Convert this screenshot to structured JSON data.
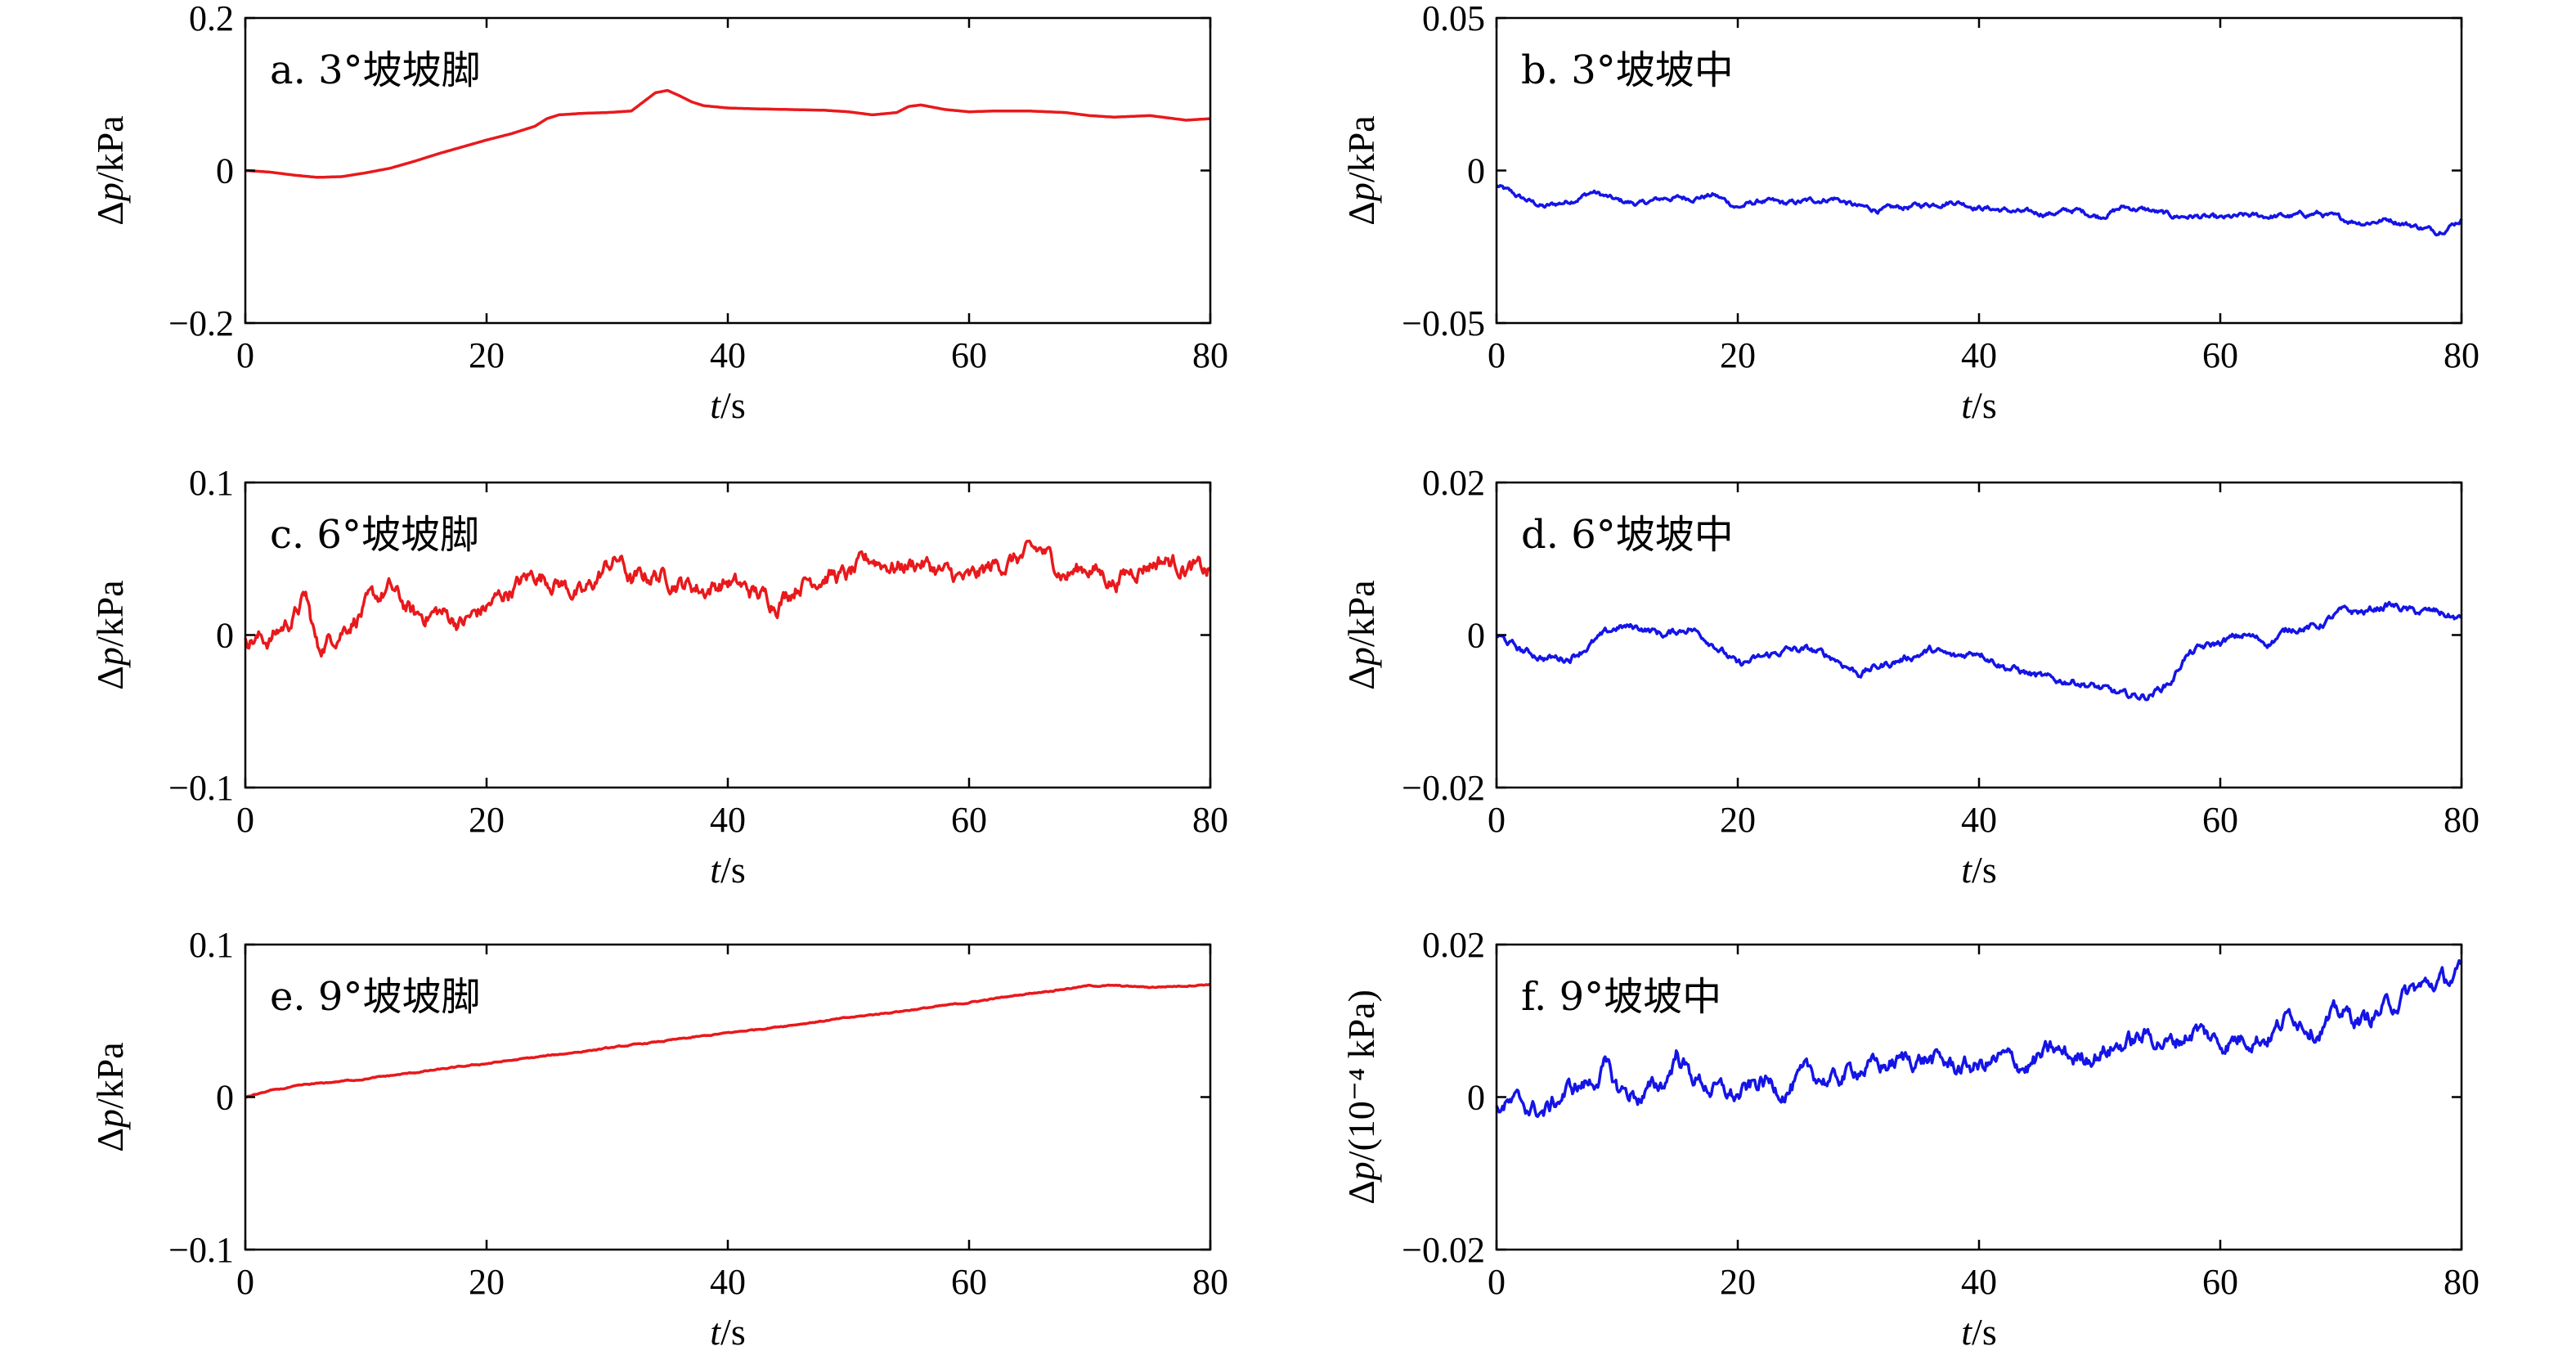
{
  "chart_data": [
    {
      "type": "line",
      "panel": "a. 3°坡坡脚",
      "xlabel_var": "t",
      "xlabel_unit": "/s",
      "ylabel_var": "p",
      "ylabel_unit": "/kPa",
      "xlim": [
        0,
        80
      ],
      "ylim": [
        -0.2,
        0.2
      ],
      "xticks": [
        "0",
        "20",
        "40",
        "60",
        "80"
      ],
      "yticks": [
        "−0.2",
        "0",
        "0.2"
      ],
      "ytick_values": [
        -0.2,
        0,
        0.2
      ],
      "color": "#e8191c",
      "noise": 0,
      "x": [
        0,
        2,
        4,
        6,
        8,
        10,
        12,
        14,
        16,
        18,
        20,
        22,
        24,
        25,
        26,
        28,
        30,
        32,
        33,
        34,
        35,
        36,
        37,
        38,
        40,
        42,
        45,
        48,
        50,
        52,
        54,
        55,
        56,
        58,
        60,
        62,
        65,
        68,
        70,
        72,
        75,
        76,
        78,
        80
      ],
      "y": [
        0,
        -0.002,
        -0.006,
        -0.009,
        -0.008,
        -0.003,
        0.003,
        0.012,
        0.022,
        0.031,
        0.04,
        0.048,
        0.058,
        0.068,
        0.073,
        0.075,
        0.076,
        0.078,
        0.09,
        0.102,
        0.105,
        0.098,
        0.09,
        0.085,
        0.082,
        0.081,
        0.08,
        0.079,
        0.077,
        0.073,
        0.076,
        0.084,
        0.086,
        0.08,
        0.077,
        0.078,
        0.078,
        0.076,
        0.072,
        0.07,
        0.072,
        0.07,
        0.066,
        0.068
      ]
    },
    {
      "type": "line",
      "panel": "b. 3°坡坡中",
      "xlabel_var": "t",
      "xlabel_unit": "/s",
      "ylabel_var": "p",
      "ylabel_unit": "/kPa",
      "xlim": [
        0,
        80
      ],
      "ylim": [
        -0.05,
        0.05
      ],
      "xticks": [
        "0",
        "20",
        "40",
        "60",
        "80"
      ],
      "yticks": [
        "−0.05",
        "0",
        "0.05"
      ],
      "ytick_values": [
        -0.05,
        0,
        0.05
      ],
      "color": "#1414e6",
      "noise": 0.0009,
      "x": [
        0,
        2,
        4,
        6,
        8,
        10,
        12,
        14,
        16,
        18,
        20,
        22,
        24,
        26,
        28,
        30,
        32,
        34,
        36,
        38,
        40,
        42,
        44,
        46,
        48,
        50,
        52,
        54,
        56,
        58,
        60,
        62,
        64,
        66,
        68,
        70,
        72,
        74,
        76,
        78,
        80
      ],
      "y": [
        -0.005,
        -0.009,
        -0.012,
        -0.01,
        -0.007,
        -0.01,
        -0.011,
        -0.009,
        -0.009,
        -0.008,
        -0.012,
        -0.01,
        -0.011,
        -0.01,
        -0.009,
        -0.012,
        -0.013,
        -0.012,
        -0.011,
        -0.01,
        -0.012,
        -0.013,
        -0.014,
        -0.014,
        -0.013,
        -0.015,
        -0.012,
        -0.013,
        -0.015,
        -0.015,
        -0.016,
        -0.015,
        -0.015,
        -0.015,
        -0.014,
        -0.016,
        -0.017,
        -0.016,
        -0.018,
        -0.02,
        -0.016
      ]
    },
    {
      "type": "line",
      "panel": "c. 6°坡坡脚",
      "xlabel_var": "t",
      "xlabel_unit": "/s",
      "ylabel_var": "p",
      "ylabel_unit": "/kPa",
      "xlim": [
        0,
        80
      ],
      "ylim": [
        -0.1,
        0.1
      ],
      "xticks": [
        "0",
        "20",
        "40",
        "60",
        "80"
      ],
      "yticks": [
        "−0.1",
        "0",
        "0.1"
      ],
      "ytick_values": [
        -0.1,
        0,
        0.1
      ],
      "color": "#e8191c",
      "noise": 0.006,
      "x": [
        0,
        2,
        4,
        5,
        6,
        8,
        10,
        12,
        14,
        16,
        18,
        20,
        22,
        24,
        26,
        28,
        30,
        31,
        32,
        34,
        36,
        38,
        40,
        42,
        44,
        46,
        48,
        50,
        52,
        54,
        56,
        58,
        60,
        62,
        64,
        66,
        68,
        70,
        72,
        74,
        76,
        78,
        80
      ],
      "y": [
        0,
        -0.003,
        0.012,
        0.025,
        -0.01,
        0.005,
        0.018,
        0.03,
        0.012,
        0.015,
        0.008,
        0.018,
        0.03,
        0.04,
        0.035,
        0.025,
        0.045,
        0.05,
        0.035,
        0.04,
        0.035,
        0.03,
        0.035,
        0.028,
        0.022,
        0.035,
        0.04,
        0.038,
        0.05,
        0.045,
        0.048,
        0.04,
        0.035,
        0.045,
        0.05,
        0.055,
        0.04,
        0.045,
        0.035,
        0.045,
        0.05,
        0.045,
        0.04
      ]
    },
    {
      "type": "line",
      "panel": "d. 6°坡坡中",
      "xlabel_var": "t",
      "xlabel_unit": "/s",
      "ylabel_var": "p",
      "ylabel_unit": "/kPa",
      "xlim": [
        0,
        80
      ],
      "ylim": [
        -0.02,
        0.02
      ],
      "xticks": [
        "0",
        "20",
        "40",
        "60",
        "80"
      ],
      "yticks": [
        "−0.02",
        "0",
        "0.02"
      ],
      "ytick_values": [
        -0.02,
        0,
        0.02
      ],
      "color": "#1414e6",
      "noise": 0.0005,
      "x": [
        0,
        2,
        4,
        6,
        8,
        10,
        12,
        14,
        16,
        18,
        20,
        22,
        24,
        26,
        28,
        30,
        32,
        34,
        36,
        38,
        40,
        42,
        44,
        46,
        48,
        50,
        52,
        54,
        56,
        57,
        58,
        60,
        62,
        64,
        66,
        68,
        70,
        72,
        74,
        76,
        78,
        80
      ],
      "y": [
        0,
        -0.002,
        -0.003,
        -0.003,
        -0.001,
        0.001,
        0.001,
        0,
        0.001,
        -0.001,
        -0.004,
        -0.003,
        -0.002,
        -0.002,
        -0.003,
        -0.005,
        -0.004,
        -0.003,
        -0.002,
        -0.003,
        -0.002,
        -0.004,
        -0.005,
        -0.006,
        -0.006,
        -0.007,
        -0.008,
        -0.008,
        -0.006,
        -0.003,
        -0.002,
        -0.001,
        0,
        -0.001,
        0.001,
        0.001,
        0.003,
        0.003,
        0.004,
        0.003,
        0.003,
        0.002
      ]
    },
    {
      "type": "line",
      "panel": "e. 9°坡坡脚",
      "xlabel_var": "t",
      "xlabel_unit": "/s",
      "ylabel_var": "p",
      "ylabel_unit": "/kPa",
      "xlim": [
        0,
        80
      ],
      "ylim": [
        -0.1,
        0.1
      ],
      "xticks": [
        "0",
        "20",
        "40",
        "60",
        "80"
      ],
      "yticks": [
        "−0.1",
        "0",
        "0.1"
      ],
      "ytick_values": [
        -0.1,
        0,
        0.1
      ],
      "color": "#e8191c",
      "noise": 0.0004,
      "x": [
        0,
        2,
        5,
        10,
        15,
        20,
        25,
        30,
        35,
        40,
        45,
        50,
        55,
        60,
        65,
        68,
        70,
        72,
        75,
        78,
        80
      ],
      "y": [
        0,
        0.004,
        0.008,
        0.012,
        0.017,
        0.022,
        0.027,
        0.032,
        0.037,
        0.042,
        0.047,
        0.052,
        0.057,
        0.062,
        0.068,
        0.071,
        0.073,
        0.073,
        0.072,
        0.073,
        0.074
      ]
    },
    {
      "type": "line",
      "panel": "f. 9°坡坡中",
      "xlabel_var": "t",
      "xlabel_unit": "/s",
      "ylabel_var": "p",
      "ylabel_unit": "/(10⁻⁴ kPa)",
      "xlim": [
        0,
        80
      ],
      "ylim": [
        -0.02,
        0.02
      ],
      "xticks": [
        "0",
        "20",
        "40",
        "60",
        "80"
      ],
      "yticks": [
        "−0.02",
        "0",
        "0.02"
      ],
      "ytick_values": [
        -0.02,
        0,
        0.02
      ],
      "color": "#1414e6",
      "noise": 0.0012,
      "x": [
        0,
        2,
        4,
        6,
        8,
        9,
        10,
        12,
        14,
        15,
        16,
        18,
        20,
        22,
        24,
        26,
        28,
        30,
        32,
        34,
        36,
        38,
        40,
        42,
        44,
        46,
        48,
        50,
        52,
        54,
        56,
        58,
        60,
        62,
        64,
        66,
        68,
        70,
        72,
        74,
        76,
        78,
        80
      ],
      "y": [
        -0.001,
        -0.001,
        -0.002,
        0.001,
        0.002,
        0.004,
        0.001,
        0,
        0.002,
        0.006,
        0.003,
        0.001,
        0,
        0.002,
        0.001,
        0.003,
        0.002,
        0.004,
        0.004,
        0.005,
        0.005,
        0.004,
        0.004,
        0.005,
        0.004,
        0.006,
        0.005,
        0.006,
        0.007,
        0.008,
        0.007,
        0.009,
        0.007,
        0.008,
        0.008,
        0.011,
        0.009,
        0.011,
        0.01,
        0.012,
        0.014,
        0.015,
        0.016
      ]
    }
  ]
}
